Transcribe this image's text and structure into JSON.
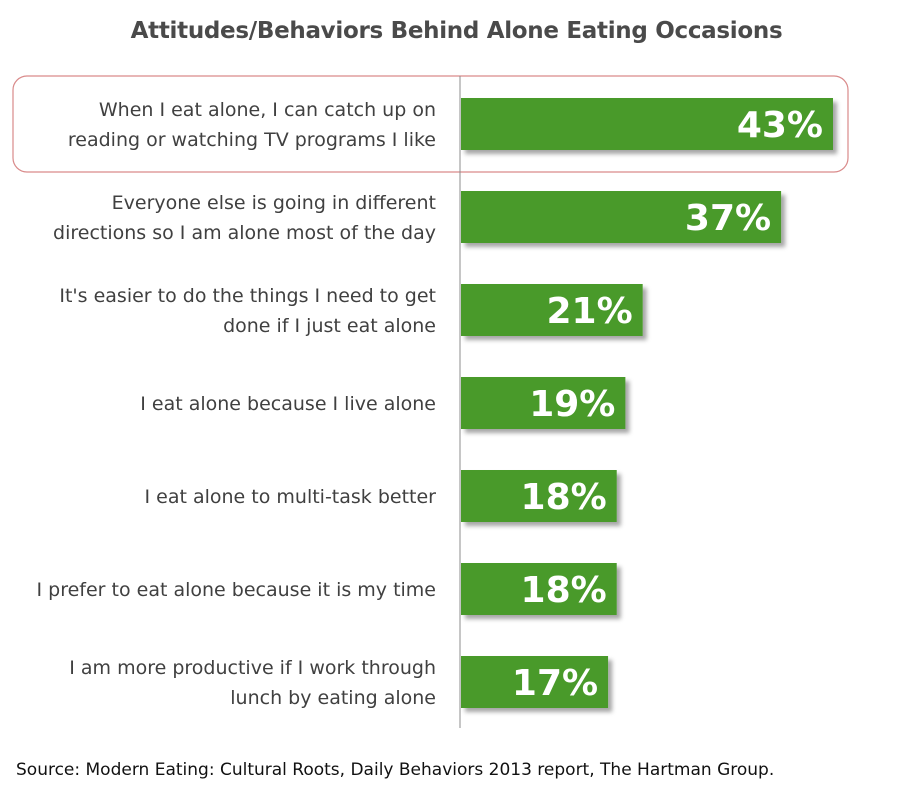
{
  "chart_data": {
    "type": "bar",
    "orientation": "horizontal",
    "title": "Attitudes/Behaviors Behind Alone Eating Occasions",
    "categories": [
      [
        "When I eat alone, I can catch up on",
        "reading or watching TV programs I like"
      ],
      [
        "Everyone else is going in different",
        "directions so I am alone most of the day"
      ],
      [
        "It's easier to do the things I need to get",
        "done if I just eat alone"
      ],
      [
        "I eat alone because I live alone"
      ],
      [
        "I eat alone to multi-task better"
      ],
      [
        "I prefer to eat alone because it is my time"
      ],
      [
        "I am more productive if I work through",
        "lunch by eating alone"
      ]
    ],
    "values": [
      43,
      37,
      21,
      19,
      18,
      18,
      17
    ],
    "value_labels": [
      "43%",
      "37%",
      "21%",
      "19%",
      "18%",
      "18%",
      "17%"
    ],
    "highlighted_index": 0,
    "xlim": [
      0,
      43
    ],
    "grid": false,
    "legend": "none",
    "colors": {
      "bar": "#4a9a2c",
      "highlight_border": "#d98a8a",
      "axis": "#8c8c8c",
      "label": "#404040"
    }
  },
  "source": "Source: Modern Eating: Cultural Roots, Daily Behaviors 2013 report, The Hartman Group."
}
